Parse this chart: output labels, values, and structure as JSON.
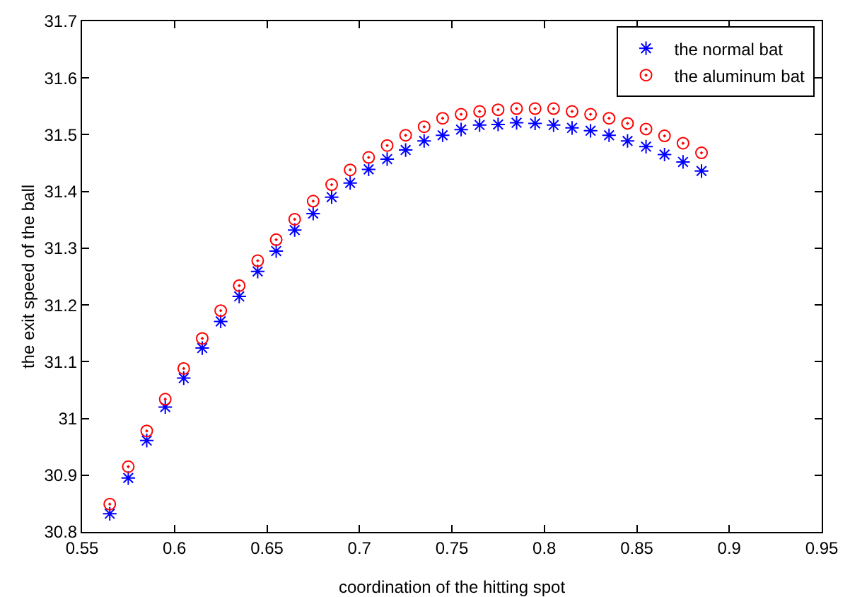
{
  "chart_data": {
    "type": "scatter",
    "xlabel": "coordination of the hitting spot",
    "ylabel": "the exit speed of the ball",
    "x": [
      0.565,
      0.575,
      0.585,
      0.595,
      0.605,
      0.615,
      0.625,
      0.635,
      0.645,
      0.655,
      0.665,
      0.675,
      0.685,
      0.695,
      0.705,
      0.715,
      0.725,
      0.735,
      0.745,
      0.755,
      0.765,
      0.775,
      0.785,
      0.795,
      0.805,
      0.815,
      0.825,
      0.835,
      0.845,
      0.855,
      0.865,
      0.875,
      0.885
    ],
    "series": [
      {
        "name": "the normal bat",
        "color": "#0000ff",
        "marker": "cross",
        "values": [
          30.832,
          30.895,
          30.961,
          31.02,
          31.071,
          31.124,
          31.171,
          31.215,
          31.259,
          31.295,
          31.332,
          31.361,
          31.39,
          31.415,
          31.439,
          31.457,
          31.473,
          31.489,
          31.499,
          31.509,
          31.517,
          31.518,
          31.521,
          31.52,
          31.517,
          31.512,
          31.507,
          31.499,
          31.489,
          31.479,
          31.465,
          31.452,
          31.436
        ]
      },
      {
        "name": "the aluminum bat",
        "color": "#ff0000",
        "marker": "circle",
        "values": [
          30.849,
          30.915,
          30.978,
          31.034,
          31.088,
          31.141,
          31.19,
          31.234,
          31.278,
          31.315,
          31.351,
          31.383,
          31.412,
          31.438,
          31.46,
          31.481,
          31.499,
          31.514,
          31.529,
          31.536,
          31.541,
          31.544,
          31.546,
          31.546,
          31.546,
          31.541,
          31.536,
          31.529,
          31.52,
          31.51,
          31.498,
          31.485,
          31.468
        ]
      }
    ],
    "xlim": [
      0.55,
      0.95
    ],
    "xticks": [
      0.55,
      0.6,
      0.65,
      0.7,
      0.75,
      0.8,
      0.85,
      0.9,
      0.95
    ],
    "ylim": [
      30.8,
      31.7
    ],
    "yticks": [
      30.8,
      30.9,
      31,
      31.1,
      31.2,
      31.3,
      31.4,
      31.5,
      31.6,
      31.7
    ],
    "grid": false,
    "legend": "top right"
  }
}
